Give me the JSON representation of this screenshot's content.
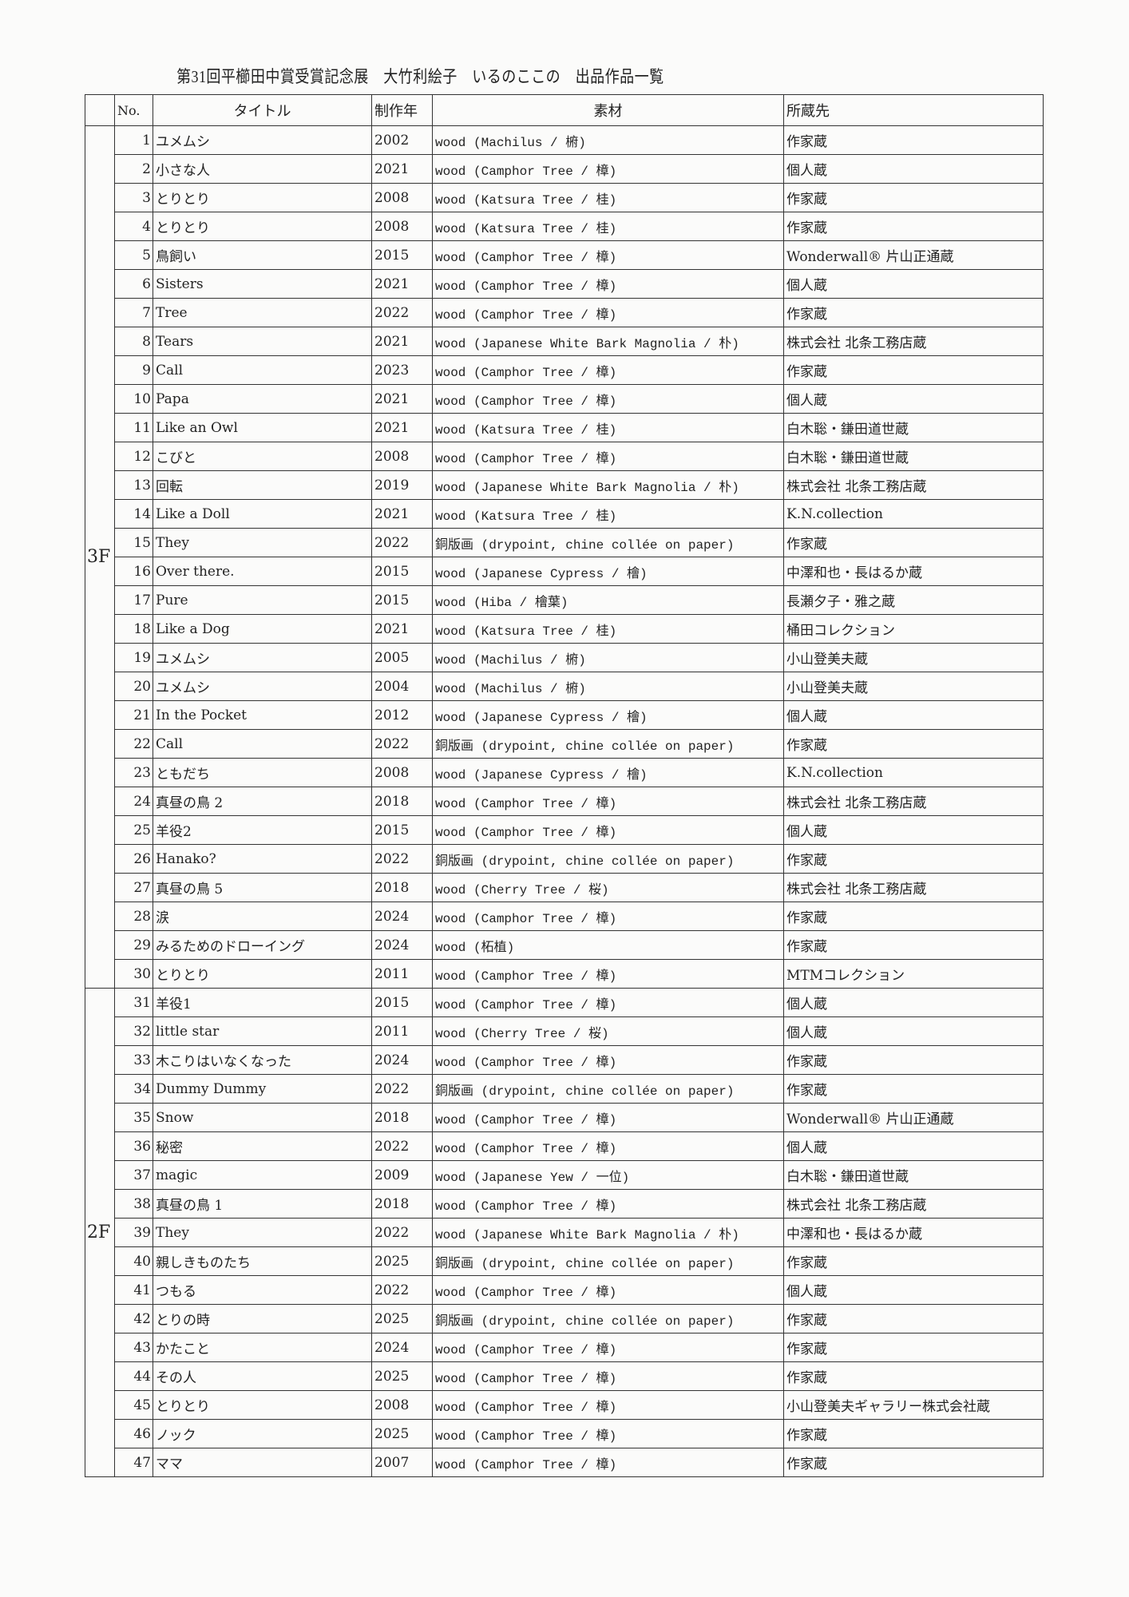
{
  "document_title": "第31回平櫛田中賞受賞記念展　大竹利絵子　いるのここの　出品作品一覧",
  "headers": {
    "floor": "",
    "no": "No.",
    "title": "タイトル",
    "year": "制作年",
    "material": "素材",
    "owner": "所蔵先"
  },
  "floors": [
    {
      "label": "3F",
      "from": 1,
      "to": 30
    },
    {
      "label": "2F",
      "from": 31,
      "to": 47
    }
  ],
  "rows": [
    [
      "1",
      "ユメムシ",
      "2002",
      "wood  (Machilus / 椨)",
      "作家蔵"
    ],
    [
      "2",
      "小さな人",
      "2021",
      "wood  (Camphor Tree / 樟)",
      "個人蔵"
    ],
    [
      "3",
      "とりとり",
      "2008",
      "wood (Katsura Tree / 桂)",
      "作家蔵"
    ],
    [
      "4",
      "とりとり",
      "2008",
      "wood (Katsura Tree / 桂)",
      "作家蔵"
    ],
    [
      "5",
      "鳥飼い",
      "2015",
      "wood  (Camphor Tree / 樟)",
      "Wonderwall® 片山正通蔵"
    ],
    [
      "6",
      "Sisters",
      "2021",
      "wood  (Camphor Tree / 樟)",
      "個人蔵"
    ],
    [
      "7",
      "Tree",
      "2022",
      "wood  (Camphor Tree / 樟)",
      "作家蔵"
    ],
    [
      "8",
      "Tears",
      "2021",
      "wood (Japanese White Bark Magnolia / 朴)",
      "株式会社 北条工務店蔵"
    ],
    [
      "9",
      "Call",
      "2023",
      "wood  (Camphor Tree / 樟)",
      "作家蔵"
    ],
    [
      "10",
      "Papa",
      "2021",
      "wood  (Camphor Tree / 樟)",
      "個人蔵"
    ],
    [
      "11",
      "Like an Owl",
      "2021",
      "wood (Katsura Tree / 桂)",
      "白木聡・鎌田道世蔵"
    ],
    [
      "12",
      "こびと",
      "2008",
      "wood  (Camphor Tree / 樟)",
      "白木聡・鎌田道世蔵"
    ],
    [
      "13",
      "回転",
      "2019",
      "wood (Japanese White Bark Magnolia / 朴)",
      "株式会社 北条工務店蔵"
    ],
    [
      "14",
      "Like a Doll",
      "2021",
      "wood (Katsura Tree / 桂)",
      "K.N.collection"
    ],
    [
      "15",
      "They",
      "2022",
      "銅版画 (drypoint, chine collée on paper)",
      "作家蔵"
    ],
    [
      "16",
      "Over there.",
      "2015",
      "wood  (Japanese Cypress / 檜)",
      "中澤和也・長はるか蔵"
    ],
    [
      "17",
      "Pure",
      "2015",
      "wood (Hiba / 檜葉)",
      "長瀬夕子・雅之蔵"
    ],
    [
      "18",
      "Like a Dog",
      "2021",
      "wood (Katsura Tree / 桂)",
      "桶田コレクション"
    ],
    [
      "19",
      "ユメムシ",
      "2005",
      "wood  (Machilus / 椨)",
      "小山登美夫蔵"
    ],
    [
      "20",
      "ユメムシ",
      "2004",
      "wood  (Machilus / 椨)",
      "小山登美夫蔵"
    ],
    [
      "21",
      "In the Pocket",
      "2012",
      "wood  (Japanese Cypress / 檜)",
      "個人蔵"
    ],
    [
      "22",
      "Call",
      "2022",
      "銅版画 (drypoint, chine collée on paper)",
      "作家蔵"
    ],
    [
      "23",
      "ともだち",
      "2008",
      "wood  (Japanese Cypress / 檜)",
      "K.N.collection"
    ],
    [
      "24",
      "真昼の鳥 2",
      "2018",
      "wood  (Camphor Tree / 樟)",
      "株式会社 北条工務店蔵"
    ],
    [
      "25",
      "羊役2",
      "2015",
      "wood  (Camphor Tree / 樟)",
      "個人蔵"
    ],
    [
      "26",
      "Hanako?",
      "2022",
      "銅版画 (drypoint, chine collée on paper)",
      "作家蔵"
    ],
    [
      "27",
      "真昼の鳥 5",
      "2018",
      "wood  (Cherry Tree / 桜)",
      "株式会社 北条工務店蔵"
    ],
    [
      "28",
      "涙",
      "2024",
      "wood  (Camphor Tree / 樟)",
      "作家蔵"
    ],
    [
      "29",
      "みるためのドローイング",
      "2024",
      "wood (柘植)",
      "作家蔵"
    ],
    [
      "30",
      "とりとり",
      "2011",
      "wood  (Camphor Tree / 樟)",
      "MTMコレクション"
    ],
    [
      "31",
      "羊役1",
      "2015",
      "wood  (Camphor Tree / 樟)",
      "個人蔵"
    ],
    [
      "32",
      "little star",
      "2011",
      "wood  (Cherry Tree / 桜)",
      "個人蔵"
    ],
    [
      "33",
      "木こりはいなくなった",
      "2024",
      "wood  (Camphor Tree / 樟)",
      "作家蔵"
    ],
    [
      "34",
      "Dummy Dummy",
      "2022",
      "銅版画 (drypoint, chine collée on paper)",
      "作家蔵"
    ],
    [
      "35",
      "Snow",
      "2018",
      "wood  (Camphor Tree / 樟)",
      "Wonderwall® 片山正通蔵"
    ],
    [
      "36",
      "秘密",
      "2022",
      "wood  (Camphor Tree / 樟)",
      "個人蔵"
    ],
    [
      "37",
      "magic",
      "2009",
      "wood  (Japanese Yew / 一位)",
      "白木聡・鎌田道世蔵"
    ],
    [
      "38",
      "真昼の鳥 1",
      "2018",
      "wood  (Camphor Tree / 樟)",
      "株式会社 北条工務店蔵"
    ],
    [
      "39",
      "They",
      "2022",
      "wood (Japanese White Bark Magnolia / 朴)",
      "中澤和也・長はるか蔵"
    ],
    [
      "40",
      "親しきものたち",
      "2025",
      "銅版画 (drypoint, chine collée on paper)",
      "作家蔵"
    ],
    [
      "41",
      "つもる",
      "2022",
      "wood  (Camphor Tree / 樟)",
      "個人蔵"
    ],
    [
      "42",
      "とりの時",
      "2025",
      "銅版画 (drypoint, chine collée on paper)",
      "作家蔵"
    ],
    [
      "43",
      "かたこと",
      "2024",
      "wood  (Camphor Tree / 樟)",
      "作家蔵"
    ],
    [
      "44",
      "その人",
      "2025",
      "wood  (Camphor Tree / 樟)",
      "作家蔵"
    ],
    [
      "45",
      "とりとり",
      "2008",
      "wood  (Camphor Tree / 樟)",
      "小山登美夫ギャラリー株式会社蔵"
    ],
    [
      "46",
      "ノック",
      "2025",
      "wood  (Camphor Tree / 樟)",
      "作家蔵"
    ],
    [
      "47",
      "ママ",
      "2007",
      "wood  (Camphor Tree / 樟)",
      "作家蔵"
    ]
  ]
}
